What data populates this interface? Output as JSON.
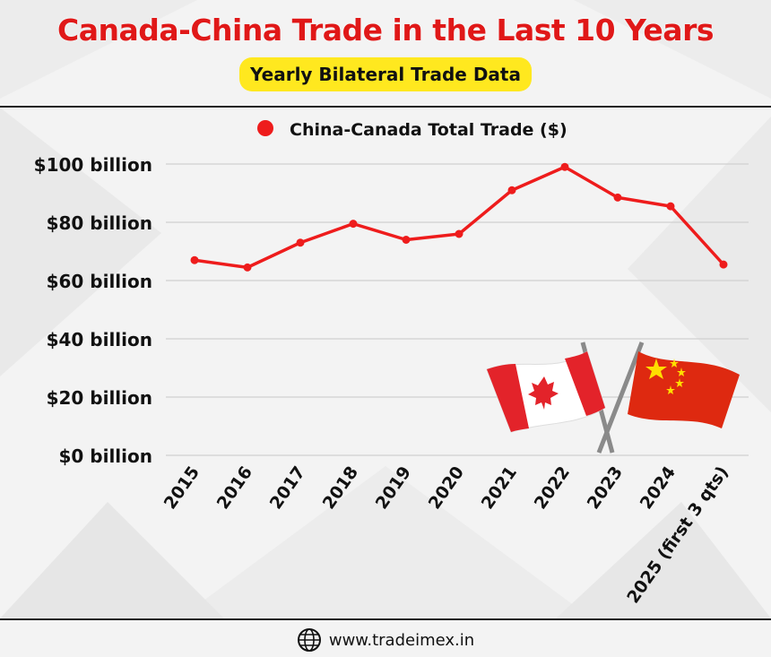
{
  "header": {
    "title": "Canada-China Trade in the Last 10 Years",
    "subtitle": "Yearly Bilateral Trade Data"
  },
  "footer": {
    "website": "www.tradeimex.in",
    "icon": "globe-icon"
  },
  "flags": {
    "left": "Canada flag",
    "right": "China flag"
  },
  "colors": {
    "title": "#e01818",
    "subtitle_bg": "#ffe81f",
    "series": "#ee1c1c",
    "grid": "#d0d0d0"
  },
  "chart_data": {
    "type": "line",
    "title": "",
    "xlabel": "",
    "ylabel": "",
    "legend_position": "top-center",
    "grid": true,
    "categories": [
      "2015",
      "2016",
      "2017",
      "2018",
      "2019",
      "2020",
      "2021",
      "2022",
      "2023",
      "2024",
      "2025 (first 3 qts)"
    ],
    "series": [
      {
        "name": "China-Canada Total Trade ($)",
        "values": [
          67,
          64.5,
          73,
          79.5,
          74,
          76,
          91,
          99,
          88.5,
          85.5,
          65.5
        ]
      }
    ],
    "ylim": [
      0,
      100
    ],
    "yticks": [
      0,
      20,
      40,
      60,
      80,
      100
    ],
    "ytick_labels": [
      "$0 billion",
      "$20 billion",
      "$40 billion",
      "$60 billion",
      "$80 billion",
      "$100 billion"
    ]
  }
}
